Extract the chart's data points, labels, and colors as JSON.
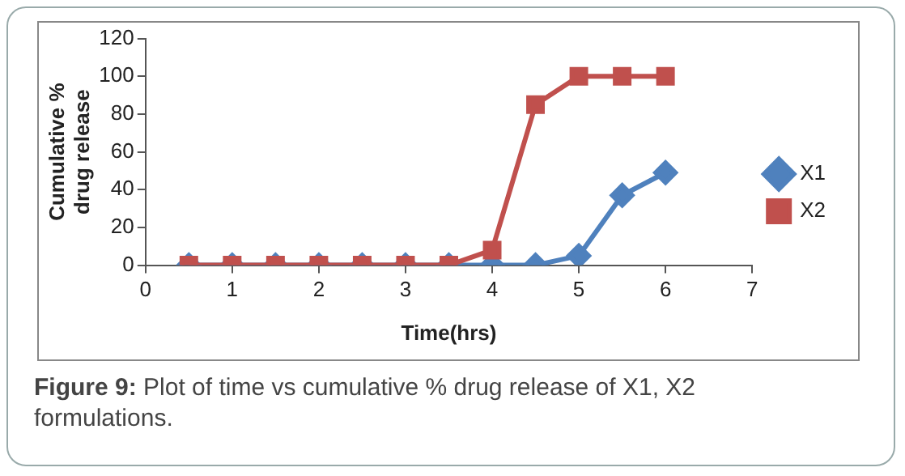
{
  "chart_data": {
    "type": "line",
    "xlabel": "Time(hrs)",
    "ylabel": "Cumulative % drug release",
    "x": [
      0.5,
      1,
      1.5,
      2,
      2.5,
      3,
      3.5,
      4,
      4.5,
      5,
      5.5,
      6
    ],
    "series": [
      {
        "name": "X1",
        "color": "#4f81bd",
        "marker": "diamond",
        "values": [
          0,
          0,
          0,
          0,
          0,
          0,
          0,
          0,
          0,
          5,
          37,
          49
        ]
      },
      {
        "name": "X2",
        "color": "#c0504d",
        "marker": "square",
        "values": [
          0,
          0,
          0,
          0,
          0,
          0,
          0,
          8,
          85,
          100,
          100,
          100
        ]
      }
    ],
    "xlim": [
      0,
      7
    ],
    "xticks": [
      0,
      1,
      2,
      3,
      4,
      5,
      6,
      7
    ],
    "ylim": [
      0,
      120
    ],
    "yticks": [
      0,
      20,
      40,
      60,
      80,
      100,
      120
    ],
    "grid": false,
    "legend": "right",
    "line_style": "solid",
    "annotations": [
      "Figure 9: Plot of time vs cumulative % drug release of X1, X2 formulations."
    ]
  }
}
